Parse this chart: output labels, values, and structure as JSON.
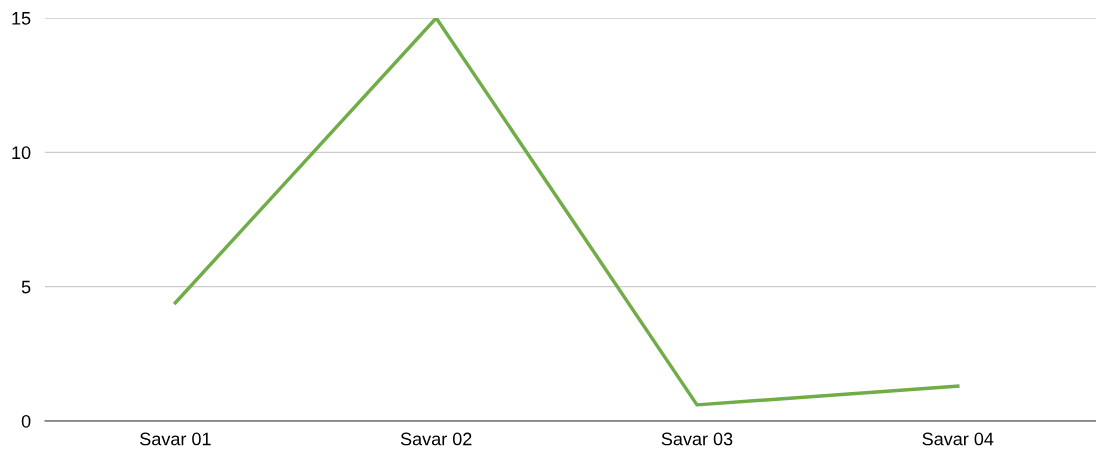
{
  "chart_data": {
    "type": "line",
    "categories": [
      "Savar 01",
      "Savar 02",
      "Savar 03",
      "Savar 04"
    ],
    "series": [
      {
        "color": "#70ad47",
        "values": [
          4.4,
          15,
          0.6,
          1.3
        ]
      }
    ],
    "ylim": [
      0,
      15
    ],
    "yticks": [
      0,
      5,
      10,
      15
    ],
    "grid": "y",
    "marker": "none",
    "line_style": "solid",
    "legend": false
  }
}
